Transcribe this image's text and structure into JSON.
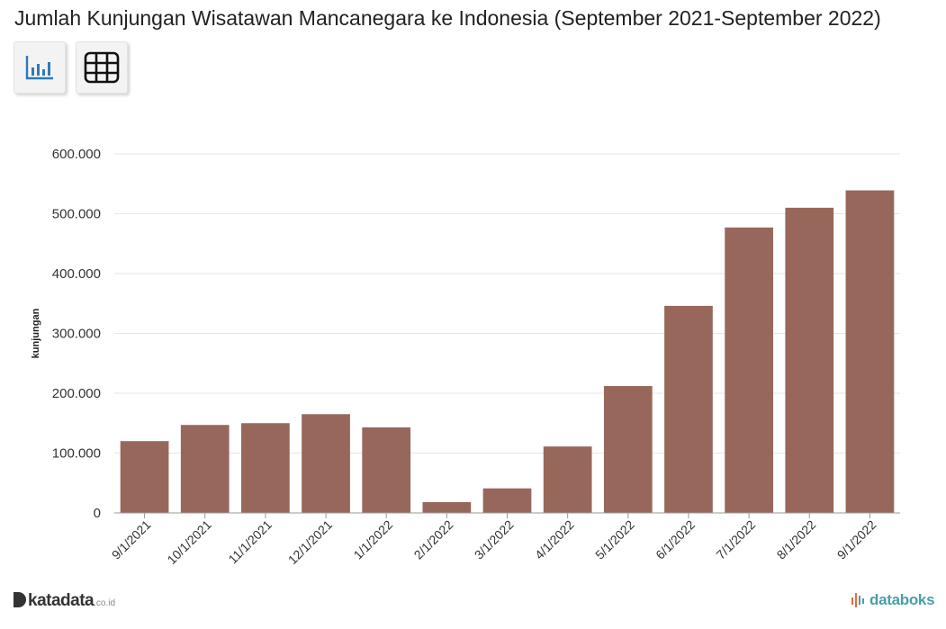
{
  "header": {
    "title": "Jumlah Kunjungan Wisatawan Mancanegara ke Indonesia (September 2021-September 2022)"
  },
  "toolbar": {
    "buttons": [
      {
        "name": "chart-view-button",
        "icon": "bar-chart-icon"
      },
      {
        "name": "table-view-button",
        "icon": "table-grid-icon"
      }
    ]
  },
  "chart_data": {
    "type": "bar",
    "categories": [
      "9/1/2021",
      "10/1/2021",
      "11/1/2021",
      "12/1/2021",
      "1/1/2022",
      "2/1/2022",
      "3/1/2022",
      "4/1/2022",
      "5/1/2022",
      "6/1/2022",
      "7/1/2022",
      "8/1/2022",
      "9/1/2022"
    ],
    "series": [
      {
        "values": [
          120000,
          147000,
          150000,
          165000,
          143000,
          18000,
          41000,
          111000,
          212000,
          346000,
          477000,
          510000,
          539000
        ]
      }
    ],
    "ylabel": "kunjungan",
    "xlabel": "",
    "ylim": [
      0,
      600000
    ],
    "yticks": [
      0,
      100000,
      200000,
      300000,
      400000,
      500000,
      600000
    ],
    "ytick_labels": [
      "0",
      "100.000",
      "200.000",
      "300.000",
      "400.000",
      "500.000",
      "600.000"
    ],
    "bar_color": "#98675c",
    "grid": true,
    "legend": "none"
  },
  "footer": {
    "left_brand": "katadata",
    "left_suffix": ".co.id",
    "right_brand": "databoks"
  }
}
